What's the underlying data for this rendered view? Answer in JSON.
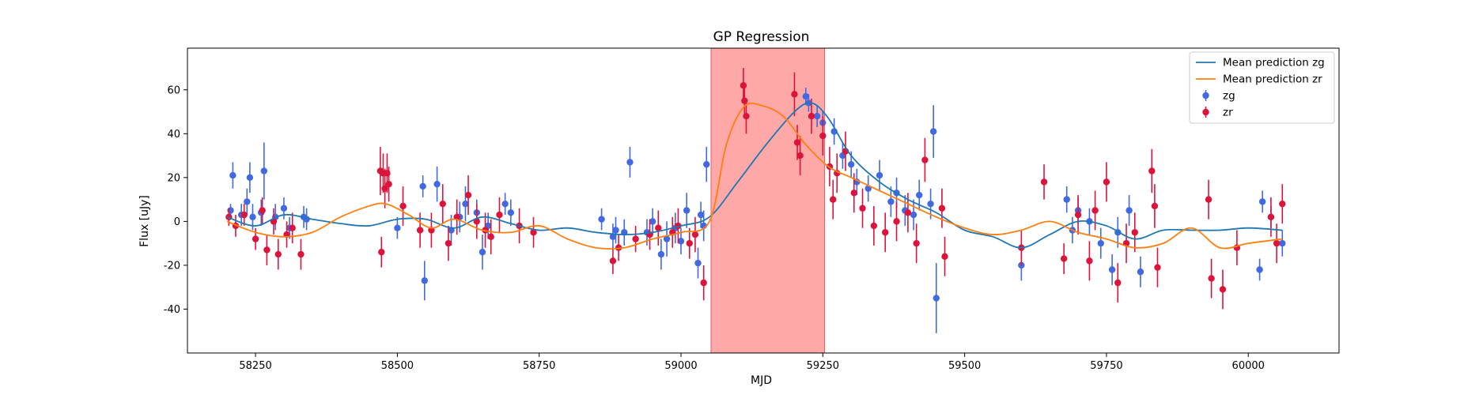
{
  "chart_data": {
    "type": "scatter",
    "title": "GP Regression",
    "xlabel": "MJD",
    "ylabel": "Flux [uJy]",
    "xlim": [
      58130,
      60160
    ],
    "ylim": [
      -60,
      79
    ],
    "xticks": [
      58250,
      58500,
      58750,
      59000,
      59250,
      59500,
      59750,
      60000
    ],
    "yticks": [
      -40,
      -20,
      0,
      20,
      40,
      60
    ],
    "grid": false,
    "legend_position": "top-right",
    "shaded_region": {
      "x_start": 59053,
      "x_end": 59253,
      "color": "#ff9999"
    },
    "colors": {
      "zg_points": "#4169e1",
      "zr_points": "#dc143c",
      "zg_line": "#1f77b4",
      "zr_line": "#ff7f0e"
    },
    "legend": [
      {
        "label": "Mean prediction zg",
        "kind": "line",
        "color": "#1f77b4"
      },
      {
        "label": "Mean prediction zr",
        "kind": "line",
        "color": "#ff7f0e"
      },
      {
        "label": "zg",
        "kind": "errorbar",
        "color": "#4169e1"
      },
      {
        "label": "zr",
        "kind": "errorbar",
        "color": "#dc143c"
      }
    ],
    "series": [
      {
        "name": "Mean prediction zg",
        "kind": "line",
        "x": [
          58200,
          58250,
          58300,
          58350,
          58400,
          58450,
          58500,
          58550,
          58600,
          58650,
          58700,
          58750,
          58800,
          58850,
          58900,
          58950,
          59000,
          59050,
          59100,
          59150,
          59200,
          59230,
          59260,
          59300,
          59350,
          59400,
          59450,
          59500,
          59550,
          59600,
          59650,
          59700,
          59750,
          59800,
          59850,
          59900,
          59950,
          60000,
          60060
        ],
        "y": [
          2,
          -2,
          3,
          1,
          -1,
          -2,
          1,
          1,
          -3,
          2,
          -1,
          -4,
          -3,
          -5,
          -6,
          -5,
          -2,
          2,
          18,
          35,
          50,
          54,
          47,
          30,
          18,
          10,
          4,
          -4,
          -7,
          -12,
          -6,
          0,
          -2,
          -8,
          -4,
          -4,
          -4,
          -3,
          -4
        ]
      },
      {
        "name": "Mean prediction zr",
        "kind": "line",
        "x": [
          58200,
          58250,
          58300,
          58350,
          58400,
          58450,
          58480,
          58520,
          58560,
          58600,
          58650,
          58700,
          58750,
          58800,
          58850,
          58900,
          58950,
          59000,
          59050,
          59080,
          59110,
          59140,
          59180,
          59220,
          59260,
          59300,
          59350,
          59400,
          59450,
          59500,
          59550,
          59600,
          59650,
          59700,
          59750,
          59800,
          59850,
          59900,
          59950,
          60000,
          60060
        ],
        "y": [
          0,
          -5,
          -7,
          -5,
          2,
          7,
          8,
          3,
          -3,
          1,
          -4,
          -5,
          -2,
          -8,
          -12,
          -12,
          -8,
          -5,
          0,
          35,
          52,
          53,
          48,
          35,
          25,
          20,
          14,
          8,
          2,
          -3,
          -6,
          -4,
          0,
          -5,
          -8,
          -12,
          -10,
          -3,
          -12,
          -10,
          -8
        ]
      },
      {
        "name": "zg",
        "kind": "errorbar",
        "x": [
          58206,
          58210,
          58225,
          58235,
          58240,
          58245,
          58260,
          58265,
          58285,
          58300,
          58310,
          58335,
          58340,
          58500,
          58545,
          58548,
          58570,
          58595,
          58610,
          58620,
          58640,
          58650,
          58660,
          58690,
          58700,
          58860,
          58880,
          58885,
          58900,
          58910,
          58940,
          58950,
          58965,
          58975,
          58990,
          59000,
          59010,
          59030,
          59035,
          59040,
          59045,
          59220,
          59225,
          59240,
          59250,
          59270,
          59285,
          59300,
          59310,
          59330,
          59350,
          59370,
          59380,
          59395,
          59410,
          59420,
          59440,
          59445,
          59450,
          59600,
          59680,
          59690,
          59700,
          59720,
          59740,
          59760,
          59770,
          59790,
          59810,
          60020,
          60025,
          60040,
          60060
        ],
        "y": [
          5,
          21,
          3,
          9,
          20,
          2,
          4,
          23,
          2,
          6,
          -3,
          2,
          1,
          -3,
          16,
          -27,
          17,
          -4,
          2,
          8,
          4,
          -14,
          -2,
          8,
          4,
          1,
          -7,
          -4,
          -5,
          27,
          -5,
          0,
          -15,
          -8,
          -3,
          -9,
          5,
          -19,
          3,
          -2,
          26,
          57,
          54,
          48,
          45,
          41,
          30,
          26,
          18,
          15,
          21,
          9,
          13,
          5,
          3,
          12,
          8,
          41,
          -35,
          -20,
          10,
          -4,
          5,
          0,
          -10,
          -22,
          -5,
          5,
          -23,
          -22,
          9,
          2,
          -10
        ],
        "err": [
          3,
          6,
          5,
          6,
          7,
          6,
          6,
          13,
          6,
          5,
          5,
          5,
          5,
          5,
          5,
          9,
          8,
          7,
          7,
          8,
          6,
          8,
          6,
          5,
          6,
          5,
          6,
          6,
          6,
          7,
          6,
          6,
          7,
          8,
          7,
          6,
          8,
          7,
          6,
          7,
          8,
          4,
          4,
          5,
          5,
          6,
          6,
          6,
          6,
          6,
          7,
          7,
          7,
          7,
          7,
          7,
          7,
          12,
          16,
          7,
          6,
          6,
          6,
          6,
          7,
          7,
          7,
          7,
          7,
          5,
          5,
          5,
          6
        ]
      },
      {
        "name": "zr",
        "kind": "errorbar",
        "x": [
          58203,
          58215,
          58230,
          58250,
          58262,
          58270,
          58282,
          58290,
          58305,
          58315,
          58330,
          58470,
          58472,
          58475,
          58478,
          58482,
          58485,
          58510,
          58540,
          58560,
          58580,
          58590,
          58605,
          58625,
          58640,
          58655,
          58665,
          58680,
          58715,
          58740,
          58880,
          58890,
          58920,
          58945,
          58960,
          58985,
          58995,
          59015,
          59025,
          59040,
          59110,
          59112,
          59115,
          59200,
          59205,
          59210,
          59230,
          59250,
          59262,
          59268,
          59275,
          59290,
          59305,
          59320,
          59340,
          59360,
          59380,
          59400,
          59415,
          59430,
          59460,
          59465,
          59600,
          59640,
          59675,
          59700,
          59720,
          59730,
          59750,
          59770,
          59785,
          59800,
          59830,
          59835,
          59840,
          59930,
          59935,
          59955,
          59980,
          60040,
          60050,
          60060
        ],
        "y": [
          2,
          -2,
          3,
          -8,
          5,
          -13,
          0,
          -15,
          -6,
          -3,
          -15,
          23,
          -14,
          22,
          15,
          22,
          17,
          7,
          -4,
          -4,
          8,
          -10,
          2,
          12,
          0,
          -4,
          -7,
          3,
          -2,
          -5,
          -18,
          -12,
          -8,
          -6,
          -3,
          -5,
          -2,
          -10,
          -6,
          -28,
          62,
          55,
          48,
          58,
          36,
          30,
          48,
          39,
          25,
          10,
          22,
          32,
          13,
          6,
          -2,
          -5,
          0,
          4,
          -10,
          28,
          6,
          -16,
          -12,
          18,
          -17,
          3,
          -18,
          5,
          18,
          -28,
          -10,
          -5,
          23,
          7,
          -21,
          10,
          -26,
          -31,
          -12,
          2,
          -10,
          8
        ],
        "err": [
          4,
          5,
          5,
          5,
          6,
          7,
          6,
          7,
          6,
          7,
          7,
          11,
          7,
          9,
          9,
          9,
          8,
          9,
          8,
          8,
          9,
          8,
          8,
          9,
          8,
          8,
          8,
          8,
          8,
          7,
          6,
          6,
          6,
          7,
          8,
          7,
          8,
          7,
          8,
          8,
          8,
          8,
          8,
          10,
          8,
          9,
          8,
          9,
          9,
          9,
          9,
          9,
          9,
          9,
          9,
          9,
          9,
          9,
          9,
          10,
          9,
          9,
          8,
          8,
          7,
          9,
          9,
          9,
          9,
          9,
          9,
          9,
          10,
          10,
          9,
          9,
          9,
          9,
          8,
          9,
          9,
          9
        ]
      }
    ]
  }
}
